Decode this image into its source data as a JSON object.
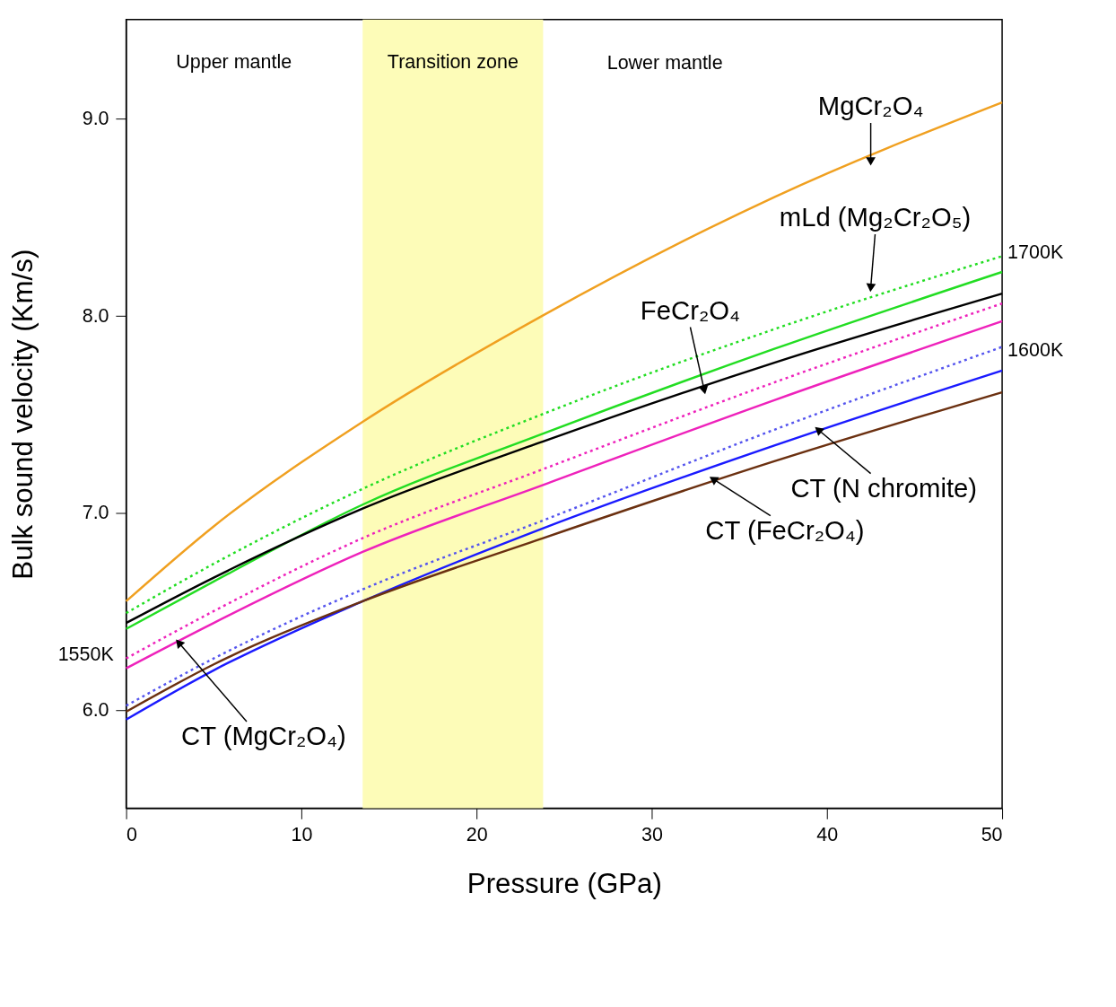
{
  "chart_data": {
    "type": "line",
    "xlabel": "Pressure (GPa)",
    "ylabel": "Bulk sound velocity (Km/s)",
    "x": [
      0,
      5,
      13.5,
      23.8,
      37,
      50
    ],
    "xlim": [
      0,
      50
    ],
    "xticks": [
      0,
      10,
      20,
      30,
      40,
      50
    ],
    "ylim": [
      5.5,
      9.5
    ],
    "yticks": [
      {
        "value": 6,
        "label": "6.0"
      },
      {
        "value": 7,
        "label": "7.0"
      },
      {
        "value": 8,
        "label": "8.0"
      },
      {
        "value": 9,
        "label": "9.0"
      }
    ],
    "grid": false,
    "marker": "none",
    "series": [
      {
        "color": "#f0a020",
        "line_style": "solid",
        "values": [
          6.55,
          6.93,
          7.46,
          8.0,
          8.6,
          9.08
        ]
      },
      {
        "color": "#22dd22",
        "line_style": "dotted",
        "values": [
          6.49,
          6.74,
          7.12,
          7.5,
          7.93,
          8.3
        ]
      },
      {
        "color": "#22dd22",
        "line_style": "solid",
        "values": [
          6.41,
          6.65,
          7.04,
          7.4,
          7.83,
          8.22
        ]
      },
      {
        "color": "#000000",
        "line_style": "solid",
        "values": [
          6.44,
          6.67,
          7.02,
          7.36,
          7.76,
          8.11
        ]
      },
      {
        "color": "#ee22bb",
        "line_style": "dotted",
        "values": [
          6.26,
          6.5,
          6.87,
          7.22,
          7.66,
          8.06
        ]
      },
      {
        "color": "#ee22bb",
        "line_style": "solid",
        "values": [
          6.21,
          6.44,
          6.8,
          7.14,
          7.57,
          7.97
        ]
      },
      {
        "color": "#5555ee",
        "line_style": "dotted",
        "values": [
          6.02,
          6.26,
          6.61,
          6.96,
          7.42,
          7.84
        ]
      },
      {
        "color": "#1a1aff",
        "line_style": "solid",
        "values": [
          5.95,
          6.2,
          6.55,
          6.92,
          7.34,
          7.72
        ]
      },
      {
        "color": "#6b3010",
        "line_style": "solid",
        "values": [
          5.99,
          6.23,
          6.55,
          6.87,
          7.26,
          7.61
        ]
      }
    ],
    "bands": [
      {
        "axis": "x",
        "from": 13.5,
        "to": 23.8,
        "label": "Transition zone",
        "color": "#fdfcb8"
      }
    ],
    "annotations": [
      "Upper mantle",
      "Lower mantle",
      {
        "text": "MgCr₂O₄",
        "x": 42.5,
        "y": 8.78
      },
      {
        "text": "mLd (Mg₂Cr₂O₅)",
        "x": 42.5,
        "y": 8.14
      },
      {
        "text": "1700K",
        "x": 50,
        "y": 8.3
      },
      {
        "text": "FeCr₂O₄",
        "x": 33,
        "y": 7.62
      },
      {
        "text": "1600K",
        "x": 50,
        "y": 7.84
      },
      {
        "text": "CT (N chromite)",
        "x": 39.5,
        "y": 7.42
      },
      {
        "text": "CT (FeCr₂O₄)",
        "x": 33.5,
        "y": 7.17
      },
      {
        "text": "CT (MgCr₂O₄)",
        "x": 3,
        "y": 6.34
      },
      {
        "text": "1550K",
        "x": 0,
        "y": 6.26
      }
    ]
  }
}
